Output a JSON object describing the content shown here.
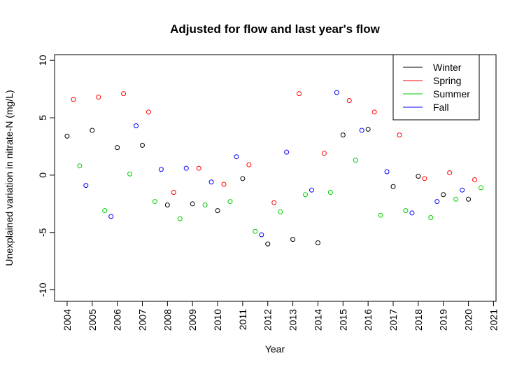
{
  "chart_data": {
    "type": "scatter",
    "title": "Adjusted for flow and last year's flow",
    "xlabel": "Year",
    "ylabel": "Unexplained variation in nitrate-N (mg/L)",
    "xlim": [
      2003.5,
      2021.1
    ],
    "ylim": [
      -11,
      10.5
    ],
    "x_ticks": [
      2004,
      2005,
      2006,
      2007,
      2008,
      2009,
      2010,
      2011,
      2012,
      2013,
      2014,
      2015,
      2016,
      2017,
      2018,
      2019,
      2020,
      2021
    ],
    "y_ticks": [
      -10,
      -5,
      0,
      5,
      10
    ],
    "legend_position": "top-right",
    "marker": "open-circle",
    "series": [
      {
        "name": "Winter",
        "color": "#000000",
        "x": [
          2004.0,
          2005.0,
          2006.0,
          2007.0,
          2008.0,
          2009.0,
          2010.0,
          2011.0,
          2012.0,
          2013.0,
          2014.0,
          2015.0,
          2016.0,
          2017.0,
          2018.0,
          2019.0,
          2020.0
        ],
        "y": [
          3.4,
          3.9,
          2.4,
          2.6,
          -2.6,
          -2.5,
          -3.1,
          -0.3,
          -6.0,
          -5.6,
          -5.9,
          3.5,
          4.0,
          -1.0,
          -0.1,
          -1.7,
          -2.1
        ]
      },
      {
        "name": "Spring",
        "color": "#FF0000",
        "x": [
          2004.25,
          2005.25,
          2006.25,
          2007.25,
          2008.25,
          2009.25,
          2010.25,
          2011.25,
          2012.25,
          2013.25,
          2014.25,
          2015.25,
          2016.25,
          2017.25,
          2018.25,
          2019.25,
          2020.25
        ],
        "y": [
          6.6,
          6.8,
          7.1,
          5.5,
          -1.5,
          0.6,
          -0.8,
          0.9,
          -2.4,
          7.1,
          1.9,
          6.5,
          5.5,
          3.5,
          -0.3,
          0.2,
          -0.4
        ]
      },
      {
        "name": "Summer",
        "color": "#00CD00",
        "x": [
          2004.5,
          2005.5,
          2006.5,
          2007.5,
          2008.5,
          2009.5,
          2010.5,
          2011.5,
          2012.5,
          2013.5,
          2014.5,
          2015.5,
          2016.5,
          2017.5,
          2018.5,
          2019.5,
          2020.5
        ],
        "y": [
          0.8,
          -3.1,
          0.1,
          -2.3,
          -3.8,
          -2.6,
          -2.3,
          -4.9,
          -3.2,
          -1.7,
          -1.5,
          1.3,
          -3.5,
          -3.1,
          -3.7,
          -2.1,
          -1.1
        ]
      },
      {
        "name": "Fall",
        "color": "#0000FF",
        "x": [
          2004.75,
          2005.75,
          2006.75,
          2007.75,
          2008.75,
          2009.75,
          2010.75,
          2011.75,
          2012.75,
          2013.75,
          2014.75,
          2015.75,
          2016.75,
          2017.75,
          2018.75,
          2019.75
        ],
        "y": [
          -0.9,
          -3.6,
          4.3,
          0.5,
          0.6,
          -0.6,
          1.6,
          -5.2,
          2.0,
          -1.3,
          7.2,
          3.9,
          0.3,
          -3.3,
          -2.3,
          -1.3
        ]
      }
    ]
  }
}
